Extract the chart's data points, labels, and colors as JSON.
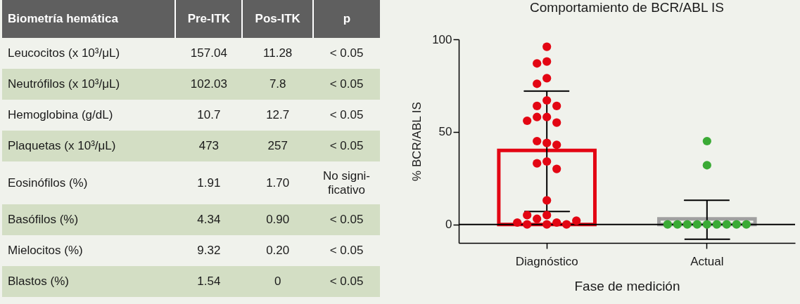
{
  "chart_data": [
    {
      "type": "other",
      "categories": [
        "Biometría hemática",
        "Pre-ITK",
        "Pos-ITK",
        "p"
      ],
      "y_categories": [
        "Leucocitos (x 10³/μL)",
        "Neutrófilos (x 10³/μL)",
        "Hemoglobina (g/dL)",
        "Plaquetas (x 10³/μL)",
        "Eosinófilos (%)",
        "Basófilos (%)",
        "Mielocitos (%)",
        "Blastos (%)"
      ],
      "cell_labels": [
        [
          "157.04",
          "11.28",
          "< 0.05"
        ],
        [
          "102.03",
          "7.8",
          "< 0.05"
        ],
        [
          "10.7",
          "12.7",
          "< 0.05"
        ],
        [
          "473",
          "257",
          "< 0.05"
        ],
        [
          "1.91",
          "1.70",
          "No signi-ficativo"
        ],
        [
          "4.34",
          "0.90",
          "< 0.05"
        ],
        [
          "9.32",
          "0.20",
          "< 0.05"
        ],
        [
          "1.54",
          "0",
          "< 0.05"
        ]
      ]
    },
    {
      "type": "bar",
      "title": "Comportamiento de BCR/ABL IS",
      "xlabel": "Fase de medición",
      "ylabel": "% BCR/ABL IS",
      "categories": [
        "Diagnóstico",
        "Actual"
      ],
      "ylim": [
        -10,
        100
      ],
      "yticks": [
        0,
        50,
        100
      ],
      "grid": false,
      "ref_lines": [
        {
          "axis": "y",
          "value": 0,
          "color": "#000000"
        }
      ],
      "series": [
        {
          "type": "bar",
          "values": [
            40,
            3
          ],
          "colors": [
            "#e30613",
            "#a0a0a0"
          ],
          "errors": [
            [
              7,
              72
            ],
            [
              -8,
              13
            ]
          ]
        },
        {
          "type": "scatter",
          "color": "#e30613",
          "x": [
            "Diagnóstico",
            "Diagnóstico",
            "Diagnóstico",
            "Diagnóstico",
            "Diagnóstico",
            "Diagnóstico",
            "Diagnóstico",
            "Diagnóstico",
            "Diagnóstico",
            "Diagnóstico",
            "Diagnóstico",
            "Diagnóstico",
            "Diagnóstico",
            "Diagnóstico",
            "Diagnóstico",
            "Diagnóstico",
            "Diagnóstico",
            "Diagnóstico",
            "Diagnóstico",
            "Diagnóstico",
            "Diagnóstico",
            "Diagnóstico",
            "Diagnóstico",
            "Diagnóstico",
            "Diagnóstico",
            "Diagnóstico",
            "Diagnóstico",
            "Diagnóstico"
          ],
          "values": [
            96,
            88,
            87,
            79,
            76,
            67,
            64,
            64,
            58,
            58,
            55,
            56,
            44,
            45,
            43,
            34,
            33,
            30,
            13,
            5,
            3,
            1,
            0,
            0,
            0,
            1,
            2,
            5
          ]
        },
        {
          "type": "scatter",
          "color": "#3aaa35",
          "x": [
            "Actual",
            "Actual",
            "Actual",
            "Actual",
            "Actual",
            "Actual",
            "Actual",
            "Actual",
            "Actual",
            "Actual",
            "Actual"
          ],
          "values": [
            45,
            32,
            0,
            0,
            0,
            0,
            0,
            0,
            0,
            0,
            0
          ]
        }
      ]
    }
  ]
}
